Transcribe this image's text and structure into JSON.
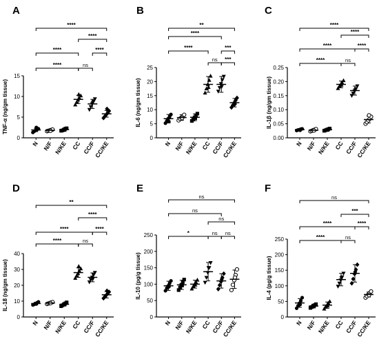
{
  "categories": [
    "N",
    "N/F",
    "N/KE",
    "CC",
    "CC/F",
    "CC/KE"
  ],
  "chart_data": [
    {
      "type": "scatter",
      "panel": "A",
      "ylabel": "TNF-α (ng/gm tissue)",
      "ylim": [
        0,
        15
      ],
      "yticks": [
        0,
        5,
        10,
        15
      ],
      "series": [
        {
          "category": "N",
          "mean": 1.9,
          "sd": 0.4,
          "marker": "circle-filled",
          "points": [
            1.3,
            1.6,
            1.8,
            2.0,
            2.2,
            2.5
          ]
        },
        {
          "category": "N/F",
          "mean": 1.8,
          "sd": 0.2,
          "marker": "circle-open",
          "points": [
            1.6,
            1.7,
            1.8,
            1.9,
            2.0,
            1.7
          ]
        },
        {
          "category": "N/KE",
          "mean": 2.0,
          "sd": 0.3,
          "marker": "square",
          "points": [
            1.7,
            1.8,
            2.0,
            2.2,
            2.3,
            1.9
          ]
        },
        {
          "category": "CC",
          "mean": 9.3,
          "sd": 1.0,
          "marker": "triangle-up",
          "points": [
            8.0,
            8.6,
            9.2,
            9.6,
            10.2,
            10.5
          ]
        },
        {
          "category": "CC/F",
          "mean": 8.2,
          "sd": 1.1,
          "marker": "triangle-down",
          "points": [
            6.8,
            7.5,
            8.2,
            8.8,
            9.4,
            8.5
          ]
        },
        {
          "category": "CC/KE",
          "mean": 5.8,
          "sd": 0.8,
          "marker": "diamond",
          "points": [
            4.8,
            5.2,
            5.6,
            6.0,
            6.5,
            7.0
          ]
        }
      ],
      "comparisons": [
        {
          "from": 0,
          "to": 5,
          "label": "****"
        },
        {
          "from": 3,
          "to": 5,
          "label": "****"
        },
        {
          "from": 0,
          "to": 3,
          "label": "****"
        },
        {
          "from": 4,
          "to": 5,
          "label": "****"
        },
        {
          "from": 0,
          "to": 3,
          "label": "****"
        },
        {
          "from": 3,
          "to": 4,
          "label": "ns"
        }
      ]
    },
    {
      "type": "scatter",
      "panel": "B",
      "ylabel": "IL-6 (ng/gm tissue)",
      "ylim": [
        0,
        25
      ],
      "yticks": [
        0,
        5,
        10,
        15,
        20,
        25
      ],
      "series": [
        {
          "category": "N",
          "mean": 6.8,
          "sd": 1.5,
          "marker": "circle-filled",
          "points": [
            5.2,
            6.0,
            6.8,
            7.5,
            8.3,
            5.8
          ]
        },
        {
          "category": "N/F",
          "mean": 7.2,
          "sd": 1.0,
          "marker": "circle-open",
          "points": [
            6.2,
            6.8,
            7.2,
            7.6,
            8.2,
            7.0
          ]
        },
        {
          "category": "N/KE",
          "mean": 7.3,
          "sd": 1.2,
          "marker": "square",
          "points": [
            6.0,
            6.5,
            7.3,
            8.0,
            8.6,
            7.0
          ]
        },
        {
          "category": "CC",
          "mean": 19.0,
          "sd": 2.8,
          "marker": "triangle-up",
          "points": [
            16.0,
            17.5,
            19.0,
            20.5,
            22.0,
            18.0
          ]
        },
        {
          "category": "CC/F",
          "mean": 19.0,
          "sd": 2.8,
          "marker": "triangle-down",
          "points": [
            16.5,
            17.8,
            19.2,
            20.6,
            21.8,
            18.2
          ]
        },
        {
          "category": "CC/KE",
          "mean": 12.5,
          "sd": 1.5,
          "marker": "diamond",
          "points": [
            10.8,
            11.6,
            12.5,
            13.3,
            14.2,
            12.0
          ]
        }
      ],
      "comparisons": [
        {
          "from": 0,
          "to": 5,
          "label": "**"
        },
        {
          "from": 0,
          "to": 4,
          "label": "****"
        },
        {
          "from": 4,
          "to": 5,
          "label": "***"
        },
        {
          "from": 0,
          "to": 3,
          "label": "****"
        },
        {
          "from": 3,
          "to": 4,
          "label": "ns"
        },
        {
          "from": 4,
          "to": 5,
          "label": "***"
        }
      ]
    },
    {
      "type": "scatter",
      "panel": "C",
      "ylabel": "IL-1β (ng/gm tissue)",
      "ylim": [
        0,
        0.25
      ],
      "yticks": [
        0.0,
        0.05,
        0.1,
        0.15,
        0.2,
        0.25
      ],
      "ytick_labels": [
        "0.00",
        "0.05",
        "0.10",
        "0.15",
        "0.20",
        "0.25"
      ],
      "series": [
        {
          "category": "N",
          "mean": 0.029,
          "sd": 0.003,
          "marker": "circle-filled",
          "points": [
            0.026,
            0.028,
            0.029,
            0.031,
            0.032,
            0.027
          ]
        },
        {
          "category": "N/F",
          "mean": 0.027,
          "sd": 0.004,
          "marker": "circle-open",
          "points": [
            0.023,
            0.025,
            0.027,
            0.029,
            0.031,
            0.026
          ]
        },
        {
          "category": "N/KE",
          "mean": 0.029,
          "sd": 0.004,
          "marker": "square",
          "points": [
            0.025,
            0.027,
            0.029,
            0.031,
            0.033,
            0.028
          ]
        },
        {
          "category": "CC",
          "mean": 0.19,
          "sd": 0.012,
          "marker": "triangle-up",
          "points": [
            0.176,
            0.183,
            0.19,
            0.196,
            0.204,
            0.188
          ]
        },
        {
          "category": "CC/F",
          "mean": 0.168,
          "sd": 0.016,
          "marker": "triangle-down",
          "points": [
            0.15,
            0.158,
            0.166,
            0.174,
            0.184,
            0.17
          ]
        },
        {
          "category": "CC/KE",
          "mean": 0.065,
          "sd": 0.012,
          "marker": "circle-open",
          "points": [
            0.05,
            0.056,
            0.062,
            0.068,
            0.075,
            0.08
          ]
        }
      ],
      "comparisons": [
        {
          "from": 0,
          "to": 5,
          "label": "****"
        },
        {
          "from": 3,
          "to": 5,
          "label": "****"
        },
        {
          "from": 0,
          "to": 4,
          "label": "****"
        },
        {
          "from": 4,
          "to": 5,
          "label": "****"
        },
        {
          "from": 0,
          "to": 3,
          "label": "****"
        },
        {
          "from": 3,
          "to": 4,
          "label": "ns"
        }
      ]
    },
    {
      "type": "scatter",
      "panel": "D",
      "ylabel": "IL-18 (ng/gm tissue)",
      "ylim": [
        0,
        40
      ],
      "yticks": [
        0,
        10,
        20,
        30,
        40
      ],
      "series": [
        {
          "category": "N",
          "mean": 8.5,
          "sd": 0.8,
          "marker": "circle-filled",
          "points": [
            7.6,
            8.0,
            8.5,
            9.0,
            9.5,
            8.2
          ]
        },
        {
          "category": "N/F",
          "mean": 8.8,
          "sd": 0.6,
          "marker": "circle-open",
          "points": [
            8.2,
            8.5,
            8.8,
            9.1,
            9.4,
            8.7
          ]
        },
        {
          "category": "N/KE",
          "mean": 8.0,
          "sd": 1.0,
          "marker": "square",
          "points": [
            6.8,
            7.4,
            8.0,
            8.6,
            9.2,
            7.8
          ]
        },
        {
          "category": "CC",
          "mean": 28.0,
          "sd": 3.0,
          "marker": "triangle-up",
          "points": [
            24.5,
            26.0,
            27.5,
            29.0,
            30.5,
            32.0
          ]
        },
        {
          "category": "CC/F",
          "mean": 25.0,
          "sd": 2.8,
          "marker": "triangle-down",
          "points": [
            22.0,
            23.5,
            25.0,
            26.5,
            28.0,
            24.0
          ]
        },
        {
          "category": "CC/KE",
          "mean": 14.0,
          "sd": 2.0,
          "marker": "diamond",
          "points": [
            11.8,
            12.8,
            13.8,
            14.8,
            15.8,
            16.5
          ]
        }
      ],
      "comparisons": [
        {
          "from": 0,
          "to": 5,
          "label": "**"
        },
        {
          "from": 3,
          "to": 5,
          "label": "****"
        },
        {
          "from": 0,
          "to": 4,
          "label": "****"
        },
        {
          "from": 4,
          "to": 5,
          "label": "****"
        },
        {
          "from": 0,
          "to": 3,
          "label": "****"
        },
        {
          "from": 3,
          "to": 4,
          "label": "ns"
        }
      ]
    },
    {
      "type": "scatter",
      "panel": "E",
      "ylabel": "IL-10 (pg/g tissue)",
      "ylim": [
        0,
        250
      ],
      "yticks": [
        0,
        50,
        100,
        150,
        200,
        250
      ],
      "series": [
        {
          "category": "N",
          "mean": 95,
          "sd": 14,
          "marker": "circle-filled",
          "points": [
            80,
            88,
            95,
            102,
            110,
            92
          ]
        },
        {
          "category": "N/F",
          "mean": 98,
          "sd": 14,
          "marker": "square",
          "points": [
            82,
            90,
            98,
            106,
            114,
            96
          ]
        },
        {
          "category": "N/KE",
          "mean": 100,
          "sd": 12,
          "marker": "triangle-up",
          "points": [
            86,
            93,
            100,
            106,
            113,
            98
          ]
        },
        {
          "category": "CC",
          "mean": 138,
          "sd": 28,
          "marker": "triangle-down",
          "points": [
            105,
            120,
            135,
            150,
            165,
            150
          ]
        },
        {
          "category": "CC/F",
          "mean": 110,
          "sd": 22,
          "marker": "diamond",
          "points": [
            85,
            97,
            108,
            120,
            132,
            115
          ]
        },
        {
          "category": "CC/KE",
          "mean": 115,
          "sd": 28,
          "marker": "circle-open",
          "points": [
            82,
            98,
            112,
            128,
            145,
            120
          ]
        }
      ],
      "comparisons": [
        {
          "from": 0,
          "to": 5,
          "label": "ns"
        },
        {
          "from": 0,
          "to": 4,
          "label": "ns"
        },
        {
          "from": 3,
          "to": 5,
          "label": "ns"
        },
        {
          "from": 0,
          "to": 3,
          "label": "*"
        },
        {
          "from": 3,
          "to": 4,
          "label": "ns"
        },
        {
          "from": 4,
          "to": 5,
          "label": "ns"
        }
      ]
    },
    {
      "type": "scatter",
      "panel": "F",
      "ylabel": "IL-4 (pg/g tissue)",
      "ylim": [
        0,
        250
      ],
      "yticks": [
        0,
        50,
        100,
        150,
        200,
        250
      ],
      "series": [
        {
          "category": "N",
          "mean": 45,
          "sd": 14,
          "marker": "circle-filled",
          "points": [
            28,
            36,
            44,
            52,
            62,
            40
          ]
        },
        {
          "category": "N/F",
          "mean": 35,
          "sd": 6,
          "marker": "square",
          "points": [
            29,
            32,
            35,
            38,
            41,
            34
          ]
        },
        {
          "category": "N/KE",
          "mean": 38,
          "sd": 10,
          "marker": "triangle-up",
          "points": [
            26,
            32,
            38,
            44,
            50,
            36
          ]
        },
        {
          "category": "CC",
          "mean": 120,
          "sd": 20,
          "marker": "triangle-down",
          "points": [
            98,
            108,
            118,
            128,
            140,
            125
          ]
        },
        {
          "category": "CC/F",
          "mean": 140,
          "sd": 28,
          "marker": "diamond",
          "points": [
            108,
            122,
            138,
            152,
            168,
            145
          ]
        },
        {
          "category": "CC/KE",
          "mean": 72,
          "sd": 8,
          "marker": "circle-open",
          "points": [
            62,
            67,
            72,
            77,
            82,
            70
          ]
        }
      ],
      "comparisons": [
        {
          "from": 0,
          "to": 5,
          "label": "ns"
        },
        {
          "from": 3,
          "to": 5,
          "label": "***"
        },
        {
          "from": 0,
          "to": 4,
          "label": "****"
        },
        {
          "from": 4,
          "to": 5,
          "label": "****"
        },
        {
          "from": 0,
          "to": 3,
          "label": "****"
        },
        {
          "from": 3,
          "to": 4,
          "label": "ns"
        }
      ]
    }
  ]
}
